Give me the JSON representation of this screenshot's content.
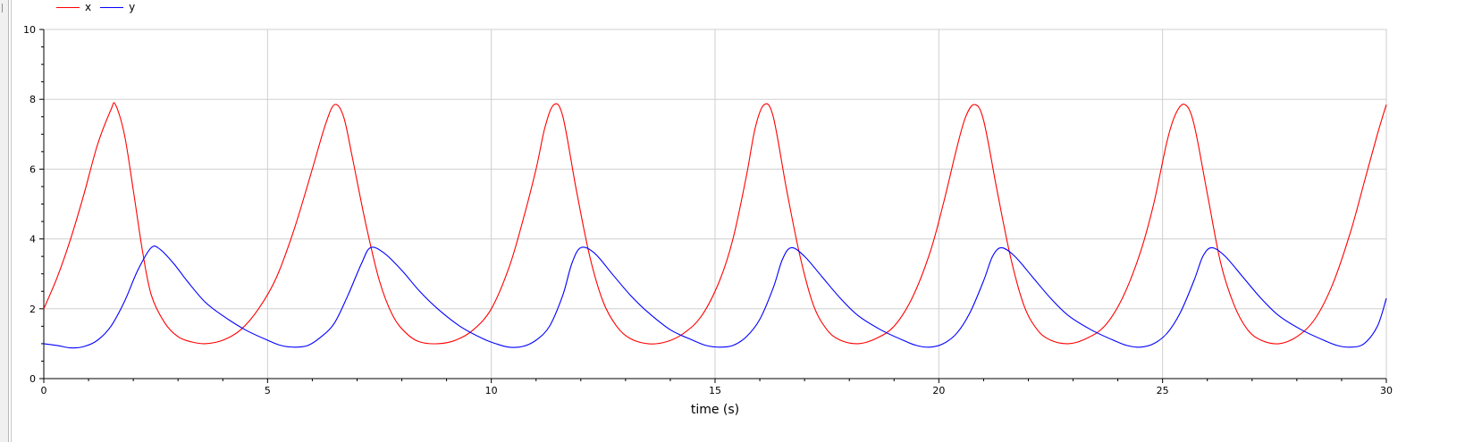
{
  "chart_data": {
    "type": "line",
    "title": "",
    "xlabel": "time (s)",
    "ylabel": "",
    "xlim": [
      0,
      30
    ],
    "ylim": [
      0,
      10
    ],
    "x_ticks": [
      0,
      5,
      10,
      15,
      20,
      25,
      30
    ],
    "y_ticks": [
      0,
      2,
      4,
      6,
      8,
      10
    ],
    "grid": true,
    "legend": "top-left",
    "series": [
      {
        "name": "x",
        "color": "#ff0000",
        "x": [
          0,
          0.3,
          0.6,
          0.9,
          1.2,
          1.5,
          1.6,
          1.8,
          2.0,
          2.2,
          2.4,
          2.7,
          3.0,
          3.3,
          3.6,
          4.0,
          4.4,
          4.8,
          5.2,
          5.6,
          6.0,
          6.3,
          6.5,
          6.7,
          6.9,
          7.2,
          7.5,
          7.8,
          8.1,
          8.4,
          8.8,
          9.2,
          9.6,
          10.0,
          10.4,
          10.7,
          11.0,
          11.2,
          11.4,
          11.6,
          11.9,
          12.2,
          12.5,
          12.8,
          13.1,
          13.5,
          13.9,
          14.3,
          14.7,
          15.1,
          15.4,
          15.7,
          15.9,
          16.1,
          16.3,
          16.6,
          16.9,
          17.2,
          17.5,
          17.8,
          18.2,
          18.6,
          19.0,
          19.4,
          19.8,
          20.1,
          20.4,
          20.6,
          20.8,
          21.0,
          21.3,
          21.6,
          21.9,
          22.2,
          22.5,
          22.9,
          23.3,
          23.7,
          24.1,
          24.5,
          24.8,
          25.1,
          25.3,
          25.5,
          25.7,
          26.0,
          26.3,
          26.6,
          26.9,
          27.2,
          27.6,
          28.0,
          28.4,
          28.8,
          29.2,
          29.5,
          29.8,
          30.0
        ],
        "values": [
          2.0,
          2.9,
          4.0,
          5.3,
          6.7,
          7.7,
          7.85,
          7.0,
          5.4,
          3.7,
          2.4,
          1.6,
          1.2,
          1.05,
          1.0,
          1.1,
          1.4,
          2.0,
          2.9,
          4.3,
          6.0,
          7.3,
          7.85,
          7.5,
          6.3,
          4.4,
          2.8,
          1.8,
          1.3,
          1.05,
          1.0,
          1.1,
          1.4,
          2.0,
          3.2,
          4.5,
          6.0,
          7.2,
          7.85,
          7.5,
          5.4,
          3.5,
          2.2,
          1.5,
          1.15,
          1.0,
          1.05,
          1.3,
          1.8,
          2.8,
          4.0,
          5.8,
          7.2,
          7.85,
          7.5,
          5.4,
          3.5,
          2.1,
          1.4,
          1.1,
          1.0,
          1.15,
          1.5,
          2.3,
          3.6,
          5.0,
          6.6,
          7.5,
          7.85,
          7.4,
          5.4,
          3.5,
          2.1,
          1.4,
          1.1,
          1.0,
          1.15,
          1.5,
          2.3,
          3.6,
          5.0,
          6.8,
          7.6,
          7.85,
          7.3,
          5.3,
          3.3,
          2.1,
          1.4,
          1.1,
          1.0,
          1.2,
          1.7,
          2.7,
          4.2,
          5.6,
          7.0,
          7.85
        ]
      },
      {
        "name": "y",
        "color": "#0000ff",
        "x": [
          0,
          0.3,
          0.6,
          0.9,
          1.2,
          1.5,
          1.8,
          2.1,
          2.4,
          2.6,
          2.9,
          3.2,
          3.6,
          4.0,
          4.5,
          5.0,
          5.3,
          5.6,
          5.9,
          6.2,
          6.5,
          6.8,
          7.1,
          7.3,
          7.6,
          8.0,
          8.4,
          8.8,
          9.3,
          9.8,
          10.1,
          10.4,
          10.7,
          11.0,
          11.3,
          11.6,
          11.8,
          12.0,
          12.3,
          12.7,
          13.1,
          13.5,
          14.0,
          14.5,
          14.8,
          15.1,
          15.4,
          15.7,
          16.0,
          16.3,
          16.5,
          16.7,
          17.0,
          17.4,
          17.8,
          18.2,
          18.7,
          19.2,
          19.5,
          19.8,
          20.1,
          20.4,
          20.7,
          21.0,
          21.2,
          21.4,
          21.7,
          22.1,
          22.5,
          22.9,
          23.4,
          23.9,
          24.2,
          24.5,
          24.8,
          25.1,
          25.4,
          25.7,
          25.9,
          26.1,
          26.4,
          26.8,
          27.2,
          27.6,
          28.1,
          28.6,
          28.9,
          29.2,
          29.5,
          29.8,
          30.0
        ],
        "values": [
          1.0,
          0.95,
          0.88,
          0.92,
          1.1,
          1.5,
          2.2,
          3.1,
          3.75,
          3.7,
          3.3,
          2.8,
          2.2,
          1.8,
          1.4,
          1.1,
          0.95,
          0.9,
          0.95,
          1.2,
          1.6,
          2.4,
          3.3,
          3.75,
          3.6,
          3.1,
          2.5,
          2.0,
          1.5,
          1.15,
          1.0,
          0.9,
          0.92,
          1.1,
          1.5,
          2.4,
          3.3,
          3.75,
          3.6,
          3.0,
          2.4,
          1.9,
          1.4,
          1.1,
          0.95,
          0.9,
          0.95,
          1.2,
          1.7,
          2.6,
          3.4,
          3.75,
          3.5,
          2.9,
          2.3,
          1.8,
          1.4,
          1.1,
          0.95,
          0.9,
          1.0,
          1.3,
          1.9,
          2.8,
          3.5,
          3.75,
          3.5,
          2.9,
          2.3,
          1.8,
          1.4,
          1.1,
          0.95,
          0.9,
          1.0,
          1.3,
          1.9,
          2.8,
          3.5,
          3.75,
          3.5,
          2.9,
          2.3,
          1.8,
          1.4,
          1.1,
          0.95,
          0.9,
          1.0,
          1.5,
          2.3
        ]
      }
    ]
  }
}
